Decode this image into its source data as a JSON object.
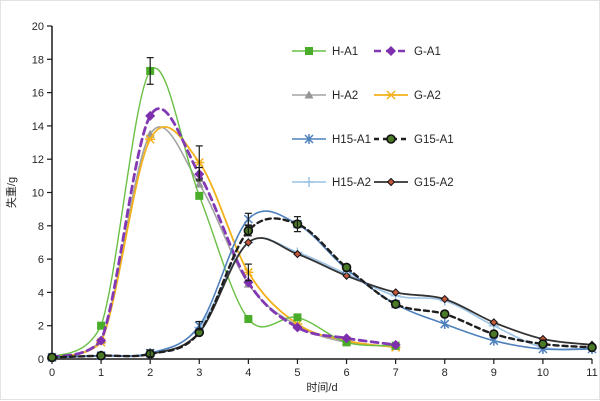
{
  "figure": {
    "kind": "line-chart-figure"
  },
  "chart_data": {
    "type": "line",
    "title": "",
    "xlabel": "时间/d",
    "ylabel": "失重/g",
    "xlim": [
      0,
      11
    ],
    "ylim": [
      0,
      20
    ],
    "xticks": [
      0,
      1,
      2,
      3,
      4,
      5,
      6,
      7,
      8,
      9,
      10,
      11
    ],
    "yticks": [
      0,
      2,
      4,
      6,
      8,
      10,
      12,
      14,
      16,
      18,
      20
    ],
    "grid": false,
    "legend_position": "inside-top-center, 2 columns, 4 rows",
    "axis_color": "#1a1a1a",
    "series": [
      {
        "name": "H-A2",
        "legend_col": 0,
        "legend_row": 1,
        "color": "#a3a3a3",
        "dash": "",
        "width": 1.6,
        "marker": "triangle",
        "marker_color": "#969696",
        "x": [
          0,
          1,
          2,
          3,
          4,
          5,
          6,
          7
        ],
        "values": [
          0.1,
          1.1,
          13.5,
          10.5,
          4.5,
          2.0,
          1.0,
          0.75
        ]
      },
      {
        "name": "G-A2",
        "legend_col": 1,
        "legend_row": 1,
        "color": "#f3b11b",
        "dash": "",
        "width": 1.8,
        "marker": "star",
        "marker_color": "#f3b11b",
        "x": [
          0,
          1,
          2,
          3,
          4,
          5,
          6,
          7
        ],
        "values": [
          0.1,
          1.0,
          13.2,
          11.8,
          5.2,
          2.1,
          1.1,
          0.7
        ]
      },
      {
        "name": "H-A1",
        "legend_col": 0,
        "legend_row": 0,
        "color": "#6abf45",
        "dash": "",
        "width": 1.4,
        "marker": "square",
        "marker_color": "#49ad29",
        "x": [
          0,
          1,
          2,
          3,
          4,
          5,
          6,
          7
        ],
        "values": [
          0.1,
          2.0,
          17.3,
          9.8,
          2.4,
          2.5,
          1.0,
          0.8
        ]
      },
      {
        "name": "G-A1",
        "legend_col": 1,
        "legend_row": 0,
        "color": "#8239b5",
        "dash": "7 5",
        "width": 2.8,
        "marker": "diamond",
        "marker_color": "#7d2fae",
        "x": [
          0,
          1,
          2,
          3,
          4,
          5,
          6,
          7
        ],
        "values": [
          0.1,
          1.1,
          14.6,
          11.1,
          4.6,
          1.9,
          1.25,
          0.85
        ]
      },
      {
        "name": "H15-A2",
        "legend_col": 0,
        "legend_row": 3,
        "color": "#9cc2e5",
        "dash": "",
        "width": 1.6,
        "marker": "plus",
        "marker_color": "#9cc2e5",
        "x": [
          0,
          1,
          2,
          3,
          4,
          5,
          6,
          7,
          8,
          9,
          10,
          11
        ],
        "values": [
          0.1,
          0.2,
          0.3,
          1.9,
          7.0,
          6.4,
          5.1,
          3.8,
          3.5,
          2.0,
          0.7,
          0.65
        ]
      },
      {
        "name": "G15-A2",
        "legend_col": 1,
        "legend_row": 3,
        "color": "#333333",
        "dash": "",
        "width": 1.8,
        "marker": "diamond-small",
        "marker_color": "#c3593c",
        "x": [
          0,
          1,
          2,
          3,
          4,
          5,
          6,
          7,
          8,
          9,
          10,
          11
        ],
        "values": [
          0.1,
          0.2,
          0.3,
          1.6,
          7.0,
          6.3,
          5.0,
          4.0,
          3.6,
          2.2,
          1.2,
          0.85
        ]
      },
      {
        "name": "H15-A1",
        "legend_col": 0,
        "legend_row": 2,
        "color": "#4f81bd",
        "dash": "",
        "width": 1.6,
        "marker": "asterisk",
        "marker_color": "#4f81bd",
        "x": [
          0,
          1,
          2,
          3,
          4,
          5,
          6,
          7,
          8,
          9,
          10,
          11
        ],
        "values": [
          0.1,
          0.2,
          0.35,
          2.0,
          8.4,
          8.1,
          5.4,
          3.3,
          2.1,
          1.1,
          0.6,
          0.6
        ]
      },
      {
        "name": "G15-A1",
        "legend_col": 1,
        "legend_row": 2,
        "color": "#1f1f1f",
        "dash": "5 4",
        "width": 2.4,
        "marker": "circle",
        "marker_color": "#4a7a28",
        "x": [
          0,
          1,
          2,
          3,
          4,
          5,
          6,
          7,
          8,
          9,
          10,
          11
        ],
        "values": [
          0.1,
          0.2,
          0.3,
          1.6,
          7.7,
          8.1,
          5.5,
          3.3,
          2.7,
          1.5,
          0.9,
          0.7
        ]
      }
    ],
    "error_bars": [
      {
        "series": "H-A1",
        "x": 2,
        "e": 0.8
      },
      {
        "series": "G-A1",
        "x": 3,
        "e": 0.4
      },
      {
        "series": "G-A2",
        "x": 3,
        "e": 1.0
      },
      {
        "series": "G-A2",
        "x": 4,
        "e": 0.5
      },
      {
        "series": "H15-A1",
        "x": 2,
        "e": 0.2
      },
      {
        "series": "H15-A1",
        "x": 3,
        "e": 0.25
      },
      {
        "series": "H15-A1",
        "x": 4,
        "e": 0.35
      },
      {
        "series": "G15-A1",
        "x": 4,
        "e": 0.3
      },
      {
        "series": "G15-A1",
        "x": 5,
        "e": 0.45
      }
    ]
  }
}
